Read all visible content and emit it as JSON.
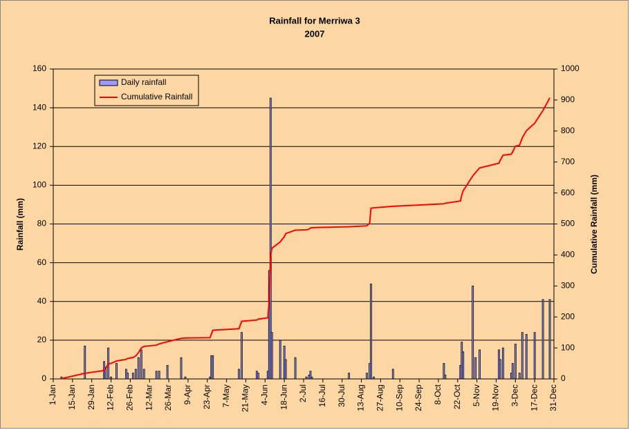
{
  "chart_data": {
    "type": "bar_line",
    "title": "Rainfall for Merriwa 3",
    "subtitle": "2007",
    "y_label": "Rainfall (mm)",
    "y2_label": "Cumulative Rainfall (mm)",
    "x": [
      6,
      23,
      37,
      38,
      40,
      42,
      46,
      53,
      54,
      58,
      60,
      62,
      64,
      66,
      75,
      77,
      83,
      93,
      96,
      114,
      115,
      116,
      135,
      137,
      148,
      149,
      156,
      157,
      158,
      159,
      165,
      168,
      169,
      176,
      184,
      186,
      187,
      188,
      215,
      228,
      230,
      231,
      233,
      247,
      284,
      285,
      296,
      297,
      298,
      305,
      307,
      310,
      324,
      325,
      327,
      333,
      334,
      336,
      339,
      341,
      344,
      350,
      356,
      361
    ],
    "series": [
      {
        "name": "Daily rainfall",
        "color": "#9999ff",
        "type": "bar",
        "values": [
          1,
          17,
          9,
          6,
          16,
          1,
          8,
          5,
          3,
          3,
          5,
          11,
          15,
          5,
          4,
          4,
          7,
          11,
          1,
          1,
          12,
          12,
          5,
          24,
          4,
          3,
          4,
          56,
          145,
          24,
          20,
          17,
          10,
          11,
          1,
          2,
          4,
          1,
          3,
          3,
          8,
          49,
          1,
          5,
          8,
          2,
          7,
          19,
          14,
          48,
          11,
          15,
          15,
          10,
          16,
          3,
          8,
          18,
          3,
          24,
          23,
          24,
          41,
          41
        ]
      },
      {
        "name": "Cumulative Rainfall",
        "color": "#ff0000",
        "type": "line",
        "axis": "y2",
        "values": [
          1,
          18,
          27,
          33,
          49,
          50,
          58,
          63,
          66,
          69,
          74,
          85,
          100,
          105,
          109,
          113,
          120,
          131,
          132,
          133,
          145,
          157,
          162,
          186,
          190,
          193,
          197,
          253,
          398,
          422,
          442,
          459,
          469,
          480,
          481,
          483,
          487,
          488,
          491,
          494,
          502,
          551,
          552,
          557,
          565,
          567,
          574,
          593,
          607,
          655,
          666,
          681,
          696,
          706,
          722,
          725,
          733,
          751,
          754,
          778,
          801,
          825,
          866,
          907
        ]
      }
    ],
    "xlim": [
      0,
      364
    ],
    "xticks": [
      {
        "value": 0,
        "label": "1-Jan"
      },
      {
        "value": 14,
        "label": "15-Jan"
      },
      {
        "value": 28,
        "label": "29-Jan"
      },
      {
        "value": 42,
        "label": "12-Feb"
      },
      {
        "value": 56,
        "label": "26-Feb"
      },
      {
        "value": 70,
        "label": "12-Mar"
      },
      {
        "value": 84,
        "label": "26-Mar"
      },
      {
        "value": 98,
        "label": "9-Apr"
      },
      {
        "value": 112,
        "label": "23-Apr"
      },
      {
        "value": 126,
        "label": "7-May"
      },
      {
        "value": 140,
        "label": "21-May"
      },
      {
        "value": 154,
        "label": "4-Jun"
      },
      {
        "value": 168,
        "label": "18-Jun"
      },
      {
        "value": 182,
        "label": "2-Jul"
      },
      {
        "value": 196,
        "label": "16-Jul"
      },
      {
        "value": 210,
        "label": "30-Jul"
      },
      {
        "value": 224,
        "label": "13-Aug"
      },
      {
        "value": 238,
        "label": "27-Aug"
      },
      {
        "value": 252,
        "label": "10-Sep"
      },
      {
        "value": 266,
        "label": "24-Sep"
      },
      {
        "value": 280,
        "label": "8-Oct"
      },
      {
        "value": 294,
        "label": "22-Oct"
      },
      {
        "value": 308,
        "label": "5-Nov"
      },
      {
        "value": 322,
        "label": "19-Nov"
      },
      {
        "value": 336,
        "label": "3-Dec"
      },
      {
        "value": 350,
        "label": "17-Dec"
      },
      {
        "value": 364,
        "label": "31-Dec"
      }
    ],
    "ylim": [
      0,
      160
    ],
    "yticks": [
      0,
      20,
      40,
      60,
      80,
      100,
      120,
      140,
      160
    ],
    "y2lim": [
      0,
      1000
    ],
    "y2ticks": [
      0,
      100,
      200,
      300,
      400,
      500,
      600,
      700,
      800,
      900,
      1000
    ],
    "grid": true,
    "legend": "upper left"
  }
}
